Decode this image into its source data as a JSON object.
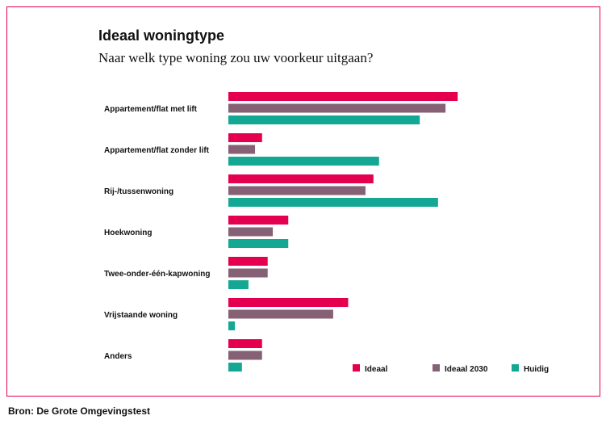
{
  "header": {
    "title": "Ideaal woningtype",
    "subtitle": "Naar welk type woning zou uw voorkeur uitgaan?"
  },
  "footer": {
    "source": "Bron: De Grote Omgevingstest"
  },
  "colors": {
    "frame": "#e4004f",
    "ideaal": "#e4004f",
    "ideaal2030": "#866176",
    "huidig": "#14a894"
  },
  "chart_data": {
    "type": "bar",
    "orientation": "horizontal",
    "title": "Ideaal woningtype",
    "subtitle": "Naar welk type woning zou uw voorkeur uitgaan?",
    "xlabel": "",
    "ylabel": "",
    "xlim": [
      0,
      60
    ],
    "grid": false,
    "legend_position": "bottom-right",
    "categories": [
      "Appartement/flat met lift",
      "Appartement/flat zonder lift",
      "Rij-/tussenwoning",
      "Hoekwoning",
      "Twee-onder-één-kapwoning",
      "Vrijstaande woning",
      "Anders"
    ],
    "series": [
      {
        "name": "Ideaal",
        "color": "#e4004f",
        "values": [
          49.0,
          7.2,
          31.0,
          12.8,
          8.4,
          25.6,
          7.2
        ]
      },
      {
        "name": "Ideaal 2030",
        "color": "#866176",
        "values": [
          46.4,
          5.7,
          29.3,
          9.5,
          8.4,
          22.4,
          7.2
        ]
      },
      {
        "name": "Huidig",
        "color": "#14a894",
        "values": [
          40.9,
          32.2,
          44.8,
          12.8,
          4.3,
          1.4,
          2.9
        ]
      }
    ]
  }
}
